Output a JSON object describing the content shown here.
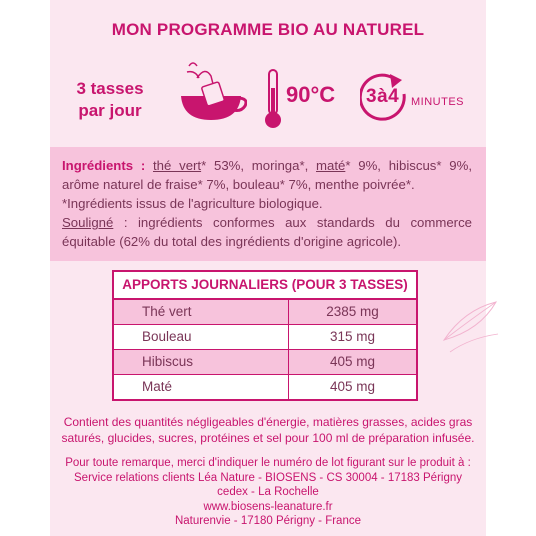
{
  "header": {
    "title": "MON PROGRAMME BIO AU NATUREL"
  },
  "usage": {
    "cups_line1": "3 tasses",
    "cups_line2": "par jour",
    "temperature": "90°C",
    "time": "3à4",
    "time_unit": "MINUTES"
  },
  "ingredients": {
    "label": "Ingrédients :",
    "parts": [
      {
        "text": "thé vert",
        "underline": true
      },
      {
        "text": "* 53%, moringa*, ",
        "underline": false
      },
      {
        "text": "maté",
        "underline": true
      },
      {
        "text": "* 9%, hibiscus* 9%, arôme naturel de fraise* 7%, bouleau* 7%, menthe poivrée*.",
        "underline": false
      }
    ],
    "organic_note": "*Ingrédients issus de l'agriculture biologique.",
    "fair_word": "Souligné",
    "fair_note": " : ingrédients conformes aux standards du commerce équitable (62% du total des ingrédients d'origine agricole)."
  },
  "daily_intake": {
    "title": "APPORTS JOURNALIERS (POUR 3 TASSES)",
    "rows": [
      {
        "name": "Thé vert",
        "value": "2385 mg"
      },
      {
        "name": "Bouleau",
        "value": "315 mg"
      },
      {
        "name": "Hibiscus",
        "value": "405 mg"
      },
      {
        "name": "Maté",
        "value": "405 mg"
      }
    ]
  },
  "footer": {
    "nutrition_line1": "Contient des quantités négligeables d'énergie, matières grasses, acides gras",
    "nutrition_line2": "saturés, glucides, sucres, protéines et sel pour 100 ml de préparation infusée.",
    "contact_line1": "Pour toute remarque, merci d'indiquer le numéro de lot figurant sur le produit à :",
    "contact_line2": "Service relations clients Léa Nature - BIOSENS - CS 30004 - 17183 Périgny cedex - La Rochelle",
    "contact_line3": "www.biosens-leanature.fr",
    "contact_line4": "Naturenvie - 17180 Périgny - France"
  },
  "colors": {
    "brand": "#c8156e",
    "panel": "#fbe7f0",
    "highlight": "#f7c3dc",
    "text": "#7a3557"
  },
  "icons": [
    "teacup-icon",
    "thermometer-icon",
    "timer-icon",
    "leaf-icon"
  ]
}
